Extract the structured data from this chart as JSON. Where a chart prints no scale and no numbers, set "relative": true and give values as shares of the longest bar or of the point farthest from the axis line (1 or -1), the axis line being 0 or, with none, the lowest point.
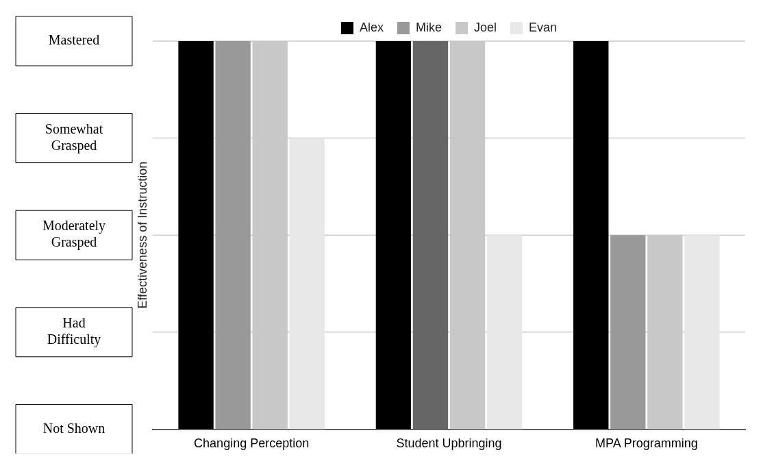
{
  "chart_data": {
    "type": "bar",
    "relative": true,
    "ylabel": "Effectiveness of Instruction",
    "categories": [
      "Changing Perception",
      "Student Upbringing",
      "MPA Programming"
    ],
    "series": [
      {
        "name": "Alex",
        "color": "#000000",
        "values": [
          1,
          1,
          1
        ]
      },
      {
        "name": "Mike",
        "color": "#666666",
        "colors": [
          "#999999",
          "#666666",
          "#999999"
        ],
        "values": [
          1,
          1,
          0.5
        ]
      },
      {
        "name": "Joel",
        "color": "#c8c8c8",
        "values": [
          1,
          1,
          0.5
        ]
      },
      {
        "name": "Evan",
        "color": "#e8e8e8",
        "values": [
          0.75,
          0.5,
          0.5
        ]
      }
    ],
    "annotations": [
      "Not Shown",
      "Had Difficulty",
      "Moderately Grasped",
      "Somewhat Grasped",
      "Mastered"
    ],
    "grid": "y",
    "legend": "top"
  }
}
